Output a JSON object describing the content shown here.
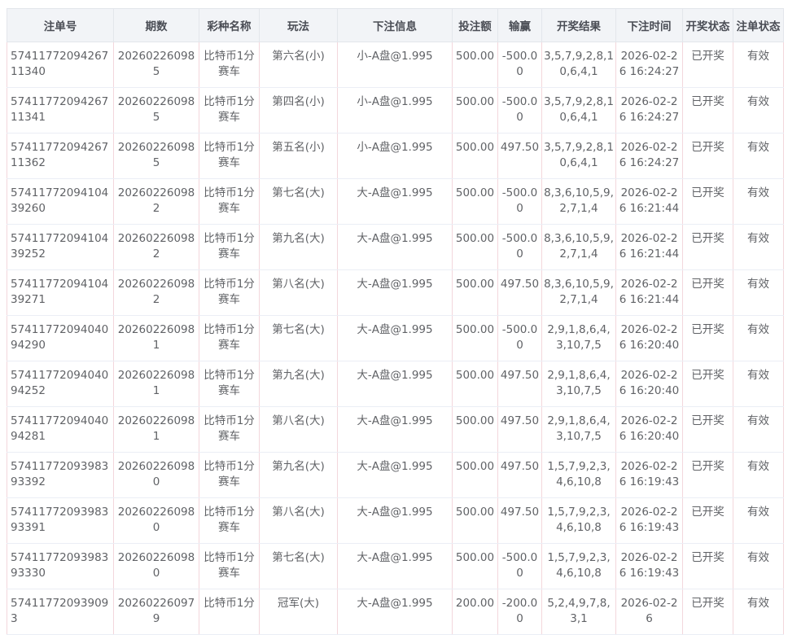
{
  "table": {
    "header": [
      "注单号",
      "期数",
      "彩种名称",
      "玩法",
      "下注信息",
      "投注额",
      "输赢",
      "开奖结果",
      "下注时间",
      "开奖状态",
      "注单状态"
    ],
    "rows": [
      [
        "5741177209426711340",
        "202602260985",
        "比特币1分赛车",
        "第六名(小)",
        "小-A盘@1.995",
        "500.00",
        "-500.00",
        "3,5,7,9,2,8,10,6,4,1",
        "2026-02-26 16:24:27",
        "已开奖",
        "有效"
      ],
      [
        "5741177209426711341",
        "202602260985",
        "比特币1分赛车",
        "第四名(小)",
        "小-A盘@1.995",
        "500.00",
        "-500.00",
        "3,5,7,9,2,8,10,6,4,1",
        "2026-02-26 16:24:27",
        "已开奖",
        "有效"
      ],
      [
        "5741177209426711362",
        "202602260985",
        "比特币1分赛车",
        "第五名(小)",
        "小-A盘@1.995",
        "500.00",
        "497.50",
        "3,5,7,9,2,8,10,6,4,1",
        "2026-02-26 16:24:27",
        "已开奖",
        "有效"
      ],
      [
        "5741177209410439260",
        "202602260982",
        "比特币1分赛车",
        "第七名(大)",
        "大-A盘@1.995",
        "500.00",
        "-500.00",
        "8,3,6,10,5,9,2,7,1,4",
        "2026-02-26 16:21:44",
        "已开奖",
        "有效"
      ],
      [
        "5741177209410439252",
        "202602260982",
        "比特币1分赛车",
        "第九名(大)",
        "大-A盘@1.995",
        "500.00",
        "-500.00",
        "8,3,6,10,5,9,2,7,1,4",
        "2026-02-26 16:21:44",
        "已开奖",
        "有效"
      ],
      [
        "5741177209410439271",
        "202602260982",
        "比特币1分赛车",
        "第八名(大)",
        "大-A盘@1.995",
        "500.00",
        "497.50",
        "8,3,6,10,5,9,2,7,1,4",
        "2026-02-26 16:21:44",
        "已开奖",
        "有效"
      ],
      [
        "5741177209404094290",
        "202602260981",
        "比特币1分赛车",
        "第七名(大)",
        "大-A盘@1.995",
        "500.00",
        "-500.00",
        "2,9,1,8,6,4,3,10,7,5",
        "2026-02-26 16:20:40",
        "已开奖",
        "有效"
      ],
      [
        "5741177209404094252",
        "202602260981",
        "比特币1分赛车",
        "第九名(大)",
        "大-A盘@1.995",
        "500.00",
        "497.50",
        "2,9,1,8,6,4,3,10,7,5",
        "2026-02-26 16:20:40",
        "已开奖",
        "有效"
      ],
      [
        "5741177209404094281",
        "202602260981",
        "比特币1分赛车",
        "第八名(大)",
        "大-A盘@1.995",
        "500.00",
        "497.50",
        "2,9,1,8,6,4,3,10,7,5",
        "2026-02-26 16:20:40",
        "已开奖",
        "有效"
      ],
      [
        "5741177209398393392",
        "202602260980",
        "比特币1分赛车",
        "第九名(大)",
        "大-A盘@1.995",
        "500.00",
        "497.50",
        "1,5,7,9,2,3,4,6,10,8",
        "2026-02-26 16:19:43",
        "已开奖",
        "有效"
      ],
      [
        "5741177209398393391",
        "202602260980",
        "比特币1分赛车",
        "第八名(大)",
        "大-A盘@1.995",
        "500.00",
        "497.50",
        "1,5,7,9,2,3,4,6,10,8",
        "2026-02-26 16:19:43",
        "已开奖",
        "有效"
      ],
      [
        "5741177209398393330",
        "202602260980",
        "比特币1分赛车",
        "第七名(大)",
        "大-A盘@1.995",
        "500.00",
        "-500.00",
        "1,5,7,9,2,3,4,6,10,8",
        "2026-02-26 16:19:43",
        "已开奖",
        "有效"
      ],
      [
        "574117720939093",
        "202602260979",
        "比特币1分",
        "冠军(大)",
        "大-A盘@1.995",
        "200.00",
        "-200.00",
        "5,2,4,9,7,8,3,1",
        "2026-02-26",
        "已开奖",
        "有效"
      ]
    ]
  }
}
